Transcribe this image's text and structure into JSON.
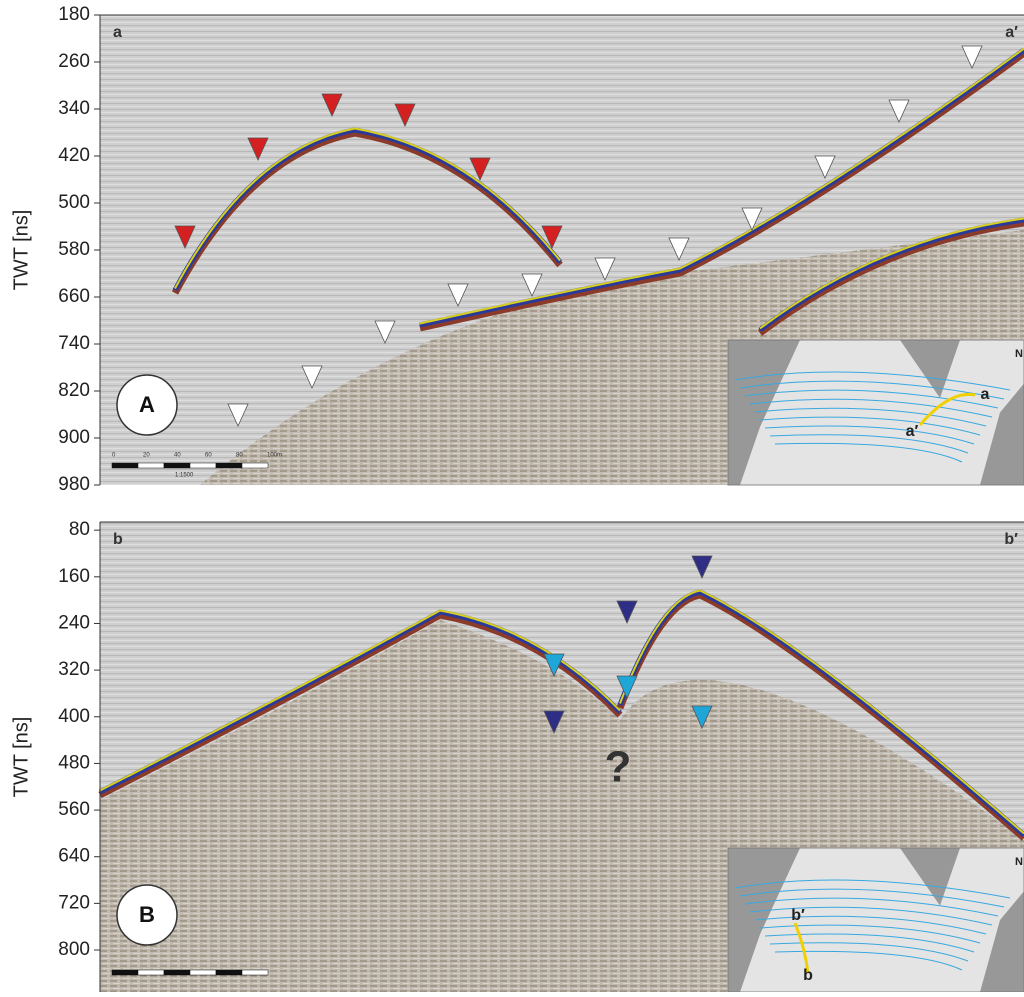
{
  "panels": [
    {
      "label": "A",
      "left_label": "a",
      "right_label": "a′",
      "y_axis_label": "TWT [ns]",
      "ylim": [
        180,
        980
      ],
      "yticks": [
        180,
        260,
        340,
        420,
        500,
        580,
        660,
        740,
        820,
        900,
        980
      ],
      "scale_bar": [
        "0",
        "20",
        "40",
        "60",
        "80",
        "100m"
      ],
      "scale_note": "1:1500",
      "inset_labels": [
        "a′",
        "a"
      ],
      "inset_north": "N"
    },
    {
      "label": "B",
      "left_label": "b",
      "right_label": "b′",
      "y_axis_label": "TWT [ns]",
      "ylim": [
        66,
        872
      ],
      "yticks": [
        80,
        160,
        240,
        320,
        400,
        480,
        560,
        640,
        720,
        800
      ],
      "annotation": "?",
      "inset_labels": [
        "b′",
        "b"
      ],
      "inset_north": "N"
    }
  ]
}
